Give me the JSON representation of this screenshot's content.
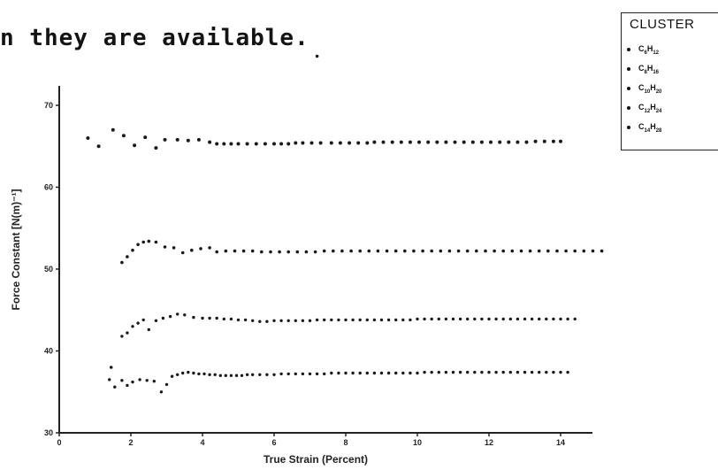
{
  "heading": "n they are available.",
  "chart_data": {
    "type": "scatter",
    "title": "",
    "xlabel": "True Strain (Percent)",
    "ylabel": "Force Constant [N(m)⁻¹]",
    "xlim": [
      0,
      14.5
    ],
    "ylim": [
      30,
      78
    ],
    "x_ticks": [
      0,
      2,
      4,
      6,
      8,
      10,
      12,
      14
    ],
    "y_ticks": [
      30,
      40,
      50,
      60,
      70
    ],
    "grid": false,
    "legend": {
      "title": "CLUSTER",
      "placement": "top-right",
      "entries": [
        {
          "C": "C",
          "n": "6",
          "H": "H",
          "m": "12"
        },
        {
          "C": "C",
          "n": "8",
          "H": "H",
          "m": "16"
        },
        {
          "C": "C",
          "n": "10",
          "H": "H",
          "m": "20"
        },
        {
          "C": "C",
          "n": "12",
          "H": "H",
          "m": "24"
        },
        {
          "C": "C",
          "n": "14",
          "H": "H",
          "m": "28"
        }
      ]
    },
    "series": [
      {
        "x": [
          0.8,
          1.1,
          1.5,
          1.8,
          2.1,
          2.4,
          2.7,
          2.95,
          3.3,
          3.6,
          3.9,
          4.2,
          4.4,
          4.6,
          4.8,
          5.0,
          5.25,
          5.5,
          5.75,
          6.0,
          6.2,
          6.4,
          6.6,
          6.8,
          7.05,
          7.3,
          7.6,
          7.85,
          8.1,
          8.35,
          8.6,
          8.8,
          9.05,
          9.3,
          9.55,
          9.8,
          10.05,
          10.3,
          10.55,
          10.8,
          11.05,
          11.3,
          11.55,
          11.8,
          12.05,
          12.3,
          12.55,
          12.8,
          13.05,
          13.3,
          13.55,
          13.8,
          14.0
        ],
        "y": [
          66.0,
          65.0,
          67.0,
          66.3,
          65.1,
          66.1,
          64.8,
          65.8,
          65.8,
          65.7,
          65.8,
          65.5,
          65.3,
          65.3,
          65.3,
          65.3,
          65.3,
          65.3,
          65.3,
          65.3,
          65.3,
          65.3,
          65.4,
          65.4,
          65.4,
          65.4,
          65.4,
          65.4,
          65.4,
          65.4,
          65.4,
          65.5,
          65.5,
          65.5,
          65.5,
          65.5,
          65.5,
          65.5,
          65.5,
          65.5,
          65.5,
          65.5,
          65.5,
          65.5,
          65.5,
          65.5,
          65.5,
          65.5,
          65.5,
          65.6,
          65.6,
          65.6,
          65.6
        ]
      },
      {
        "x": [
          7.2,
          1.75,
          1.9,
          2.05,
          2.2,
          2.35,
          2.5,
          2.7,
          2.95,
          3.2,
          3.45,
          3.7,
          3.95,
          4.2,
          4.4,
          4.65,
          4.9,
          5.15,
          5.4,
          5.65,
          5.9,
          6.15,
          6.4,
          6.65,
          6.9,
          7.15,
          7.4,
          7.65,
          7.9,
          8.15,
          8.4,
          8.65,
          8.9,
          9.15,
          9.4,
          9.65,
          9.9,
          10.15,
          10.4,
          10.65,
          10.9,
          11.15,
          11.4,
          11.65,
          11.9,
          12.15,
          12.4,
          12.65,
          12.9,
          13.15,
          13.4,
          13.65,
          13.9,
          14.15,
          14.4,
          14.65,
          14.9,
          15.15
        ],
        "y": [
          76.0,
          50.8,
          51.5,
          52.3,
          53.0,
          53.3,
          53.4,
          53.3,
          52.7,
          52.6,
          52.0,
          52.3,
          52.5,
          52.6,
          52.1,
          52.2,
          52.2,
          52.2,
          52.2,
          52.1,
          52.1,
          52.1,
          52.1,
          52.1,
          52.1,
          52.1,
          52.2,
          52.2,
          52.2,
          52.2,
          52.2,
          52.2,
          52.2,
          52.2,
          52.2,
          52.2,
          52.2,
          52.2,
          52.2,
          52.2,
          52.2,
          52.2,
          52.2,
          52.2,
          52.2,
          52.2,
          52.2,
          52.2,
          52.2,
          52.2,
          52.2,
          52.2,
          52.2,
          52.2,
          52.2,
          52.2,
          52.2,
          52.2
        ]
      },
      {
        "x": [
          1.75,
          1.9,
          2.05,
          2.2,
          2.35,
          2.5,
          2.7,
          2.9,
          3.1,
          3.3,
          3.5,
          3.75,
          4.0,
          4.2,
          4.4,
          4.6,
          4.8,
          5.0,
          5.2,
          5.4,
          5.6,
          5.8,
          6.0,
          6.2,
          6.4,
          6.6,
          6.8,
          7.0,
          7.2,
          7.4,
          7.6,
          7.8,
          8.0,
          8.2,
          8.4,
          8.6,
          8.8,
          9.0,
          9.2,
          9.4,
          9.6,
          9.8,
          10.0,
          10.2,
          10.4,
          10.6,
          10.8,
          11.0,
          11.2,
          11.4,
          11.6,
          11.8,
          12.0,
          12.2,
          12.4,
          12.6,
          12.8,
          13.0,
          13.2,
          13.4,
          13.6,
          13.8,
          14.0,
          14.2,
          14.4
        ],
        "y": [
          41.8,
          42.2,
          43.0,
          43.4,
          43.8,
          42.6,
          43.7,
          44.0,
          44.2,
          44.5,
          44.4,
          44.1,
          44.0,
          44.0,
          44.0,
          43.9,
          43.9,
          43.8,
          43.8,
          43.7,
          43.6,
          43.6,
          43.7,
          43.7,
          43.7,
          43.7,
          43.7,
          43.7,
          43.8,
          43.8,
          43.8,
          43.8,
          43.8,
          43.8,
          43.8,
          43.8,
          43.8,
          43.8,
          43.8,
          43.8,
          43.8,
          43.8,
          43.9,
          43.9,
          43.9,
          43.9,
          43.9,
          43.9,
          43.9,
          43.9,
          43.9,
          43.9,
          43.9,
          43.9,
          43.9,
          43.9,
          43.9,
          43.9,
          43.9,
          43.9,
          43.9,
          43.9,
          43.9,
          43.9,
          43.9
        ]
      },
      {
        "x": [
          1.4,
          1.55,
          1.75,
          1.9,
          2.05,
          2.25,
          2.45,
          2.65,
          2.85,
          3.0,
          3.15,
          3.3,
          3.45,
          3.6,
          3.75,
          3.9,
          4.05,
          4.2,
          4.35,
          4.5,
          4.65,
          4.8,
          4.95,
          5.1,
          5.25,
          5.4,
          5.6,
          5.8,
          6.0,
          6.2,
          6.4,
          6.6,
          6.8,
          7.0,
          7.2,
          7.4,
          7.6,
          7.8,
          8.0,
          8.2,
          8.4,
          8.6,
          8.8,
          9.0,
          9.2,
          9.4,
          9.6,
          9.8,
          10.0,
          10.2,
          10.4,
          10.6,
          10.8,
          11.0,
          11.2,
          11.4,
          11.6,
          11.8,
          12.0,
          12.2,
          12.4,
          12.6,
          12.8,
          13.0,
          13.2,
          13.4,
          13.6,
          13.8,
          14.0,
          14.2
        ],
        "y": [
          36.5,
          35.6,
          36.4,
          35.8,
          36.2,
          36.5,
          36.4,
          36.3,
          35.0,
          35.9,
          36.9,
          37.1,
          37.3,
          37.4,
          37.3,
          37.2,
          37.2,
          37.1,
          37.1,
          37.0,
          37.0,
          37.0,
          37.0,
          37.0,
          37.1,
          37.1,
          37.1,
          37.1,
          37.1,
          37.2,
          37.2,
          37.2,
          37.2,
          37.2,
          37.2,
          37.2,
          37.3,
          37.3,
          37.3,
          37.3,
          37.3,
          37.3,
          37.3,
          37.3,
          37.3,
          37.3,
          37.3,
          37.3,
          37.3,
          37.4,
          37.4,
          37.4,
          37.4,
          37.4,
          37.4,
          37.4,
          37.4,
          37.4,
          37.4,
          37.4,
          37.4,
          37.4,
          37.4,
          37.4,
          37.4,
          37.4,
          37.4,
          37.4,
          37.4,
          37.4
        ]
      },
      {
        "x": [
          1.45
        ],
        "y": [
          38.0
        ]
      }
    ]
  }
}
